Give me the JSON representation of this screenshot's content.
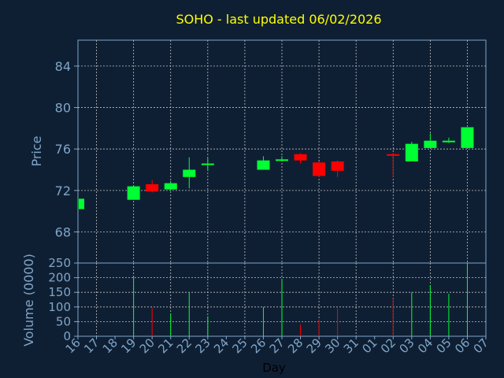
{
  "title": "SOHO - last updated 06/02/2026",
  "colors": {
    "background": "#0f1f33",
    "up": "#00ff33",
    "down": "#ff0000",
    "grid": "#c0c0c0",
    "title": "#ffff00",
    "axis_text": "#7fa6c8",
    "xlabel_text": "#000000"
  },
  "chart_data": [
    {
      "type": "candlestick",
      "ylabel": "Price",
      "ylim": [
        65,
        86.5
      ],
      "yticks": [
        68,
        72,
        76,
        80,
        84
      ],
      "grid": true,
      "categories": [
        "16",
        "17",
        "18",
        "19",
        "20",
        "21",
        "22",
        "23",
        "24",
        "25",
        "26",
        "27",
        "28",
        "29",
        "30",
        "31",
        "01",
        "02",
        "03",
        "04",
        "05",
        "06",
        "07"
      ],
      "candles": [
        {
          "day": "16",
          "open": 70.2,
          "close": 71.2,
          "high": 71.2,
          "low": 70.2
        },
        {
          "day": "19",
          "open": 71.1,
          "close": 72.4,
          "high": 72.5,
          "low": 71.1
        },
        {
          "day": "20",
          "open": 72.6,
          "close": 71.9,
          "high": 73.0,
          "low": 71.8
        },
        {
          "day": "21",
          "open": 72.1,
          "close": 72.7,
          "high": 72.9,
          "low": 72.0
        },
        {
          "day": "22",
          "open": 73.3,
          "close": 74.0,
          "high": 75.2,
          "low": 72.2
        },
        {
          "day": "23",
          "open": 74.5,
          "close": 74.6,
          "high": 75.1,
          "low": 73.9
        },
        {
          "day": "26",
          "open": 74.0,
          "close": 74.9,
          "high": 75.3,
          "low": 74.0
        },
        {
          "day": "27",
          "open": 74.9,
          "close": 75.0,
          "high": 75.3,
          "low": 74.8
        },
        {
          "day": "28",
          "open": 75.5,
          "close": 74.9,
          "high": 75.6,
          "low": 74.6
        },
        {
          "day": "29",
          "open": 74.7,
          "close": 73.4,
          "high": 74.8,
          "low": 73.3
        },
        {
          "day": "30",
          "open": 74.8,
          "close": 73.9,
          "high": 74.9,
          "low": 73.3
        },
        {
          "day": "02",
          "open": 75.5,
          "close": 75.4,
          "high": 75.6,
          "low": 73.3
        },
        {
          "day": "03",
          "open": 74.8,
          "close": 76.5,
          "high": 76.7,
          "low": 74.8
        },
        {
          "day": "04",
          "open": 76.1,
          "close": 76.8,
          "high": 77.5,
          "low": 76.1
        },
        {
          "day": "05",
          "open": 76.7,
          "close": 76.8,
          "high": 77.1,
          "low": 76.6
        },
        {
          "day": "06",
          "open": 76.1,
          "close": 78.1,
          "high": 78.1,
          "low": 76.1
        }
      ]
    },
    {
      "type": "bar",
      "ylabel": "Volume (0000)",
      "xlabel": "Day",
      "ylim": [
        0,
        250
      ],
      "yticks": [
        0,
        50,
        100,
        150,
        200,
        250
      ],
      "grid": true,
      "categories": [
        "16",
        "17",
        "18",
        "19",
        "20",
        "21",
        "22",
        "23",
        "24",
        "25",
        "26",
        "27",
        "28",
        "29",
        "30",
        "31",
        "01",
        "02",
        "03",
        "04",
        "05",
        "06",
        "07"
      ],
      "bars": [
        {
          "day": "19",
          "value": 205,
          "direction": "up"
        },
        {
          "day": "20",
          "value": 98,
          "direction": "down"
        },
        {
          "day": "21",
          "value": 78,
          "direction": "up"
        },
        {
          "day": "22",
          "value": 150,
          "direction": "up"
        },
        {
          "day": "23",
          "value": 68,
          "direction": "up"
        },
        {
          "day": "26",
          "value": 100,
          "direction": "up"
        },
        {
          "day": "27",
          "value": 195,
          "direction": "up"
        },
        {
          "day": "28",
          "value": 40,
          "direction": "down"
        },
        {
          "day": "29",
          "value": 58,
          "direction": "down"
        },
        {
          "day": "30",
          "value": 95,
          "direction": "down"
        },
        {
          "day": "02",
          "value": 130,
          "direction": "down"
        },
        {
          "day": "03",
          "value": 150,
          "direction": "up"
        },
        {
          "day": "04",
          "value": 175,
          "direction": "up"
        },
        {
          "day": "05",
          "value": 145,
          "direction": "up"
        },
        {
          "day": "06",
          "value": 250,
          "direction": "up"
        }
      ]
    }
  ]
}
